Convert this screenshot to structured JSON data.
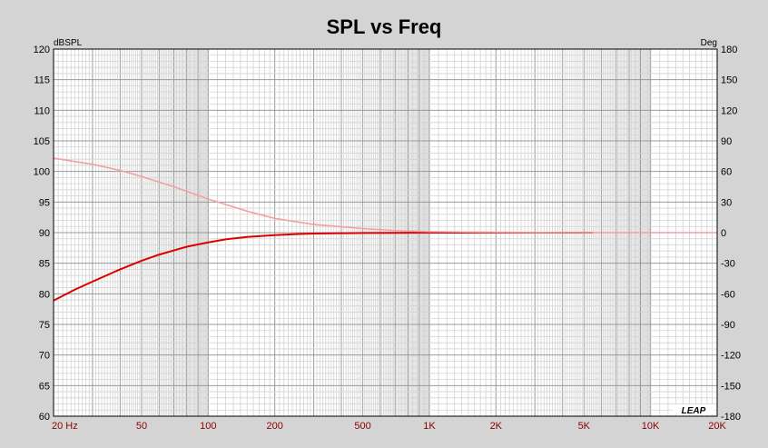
{
  "chart_data": {
    "type": "line",
    "title": "SPL vs Freq",
    "y_left_unit": "dBSPL",
    "y_right_unit": "Deg",
    "x_scale": "log",
    "xlim": [
      20,
      20000
    ],
    "ylim_left": [
      60,
      120
    ],
    "ylim_right": [
      -180,
      180
    ],
    "grid": true,
    "x_tick_values": [
      20,
      50,
      100,
      200,
      500,
      1000,
      2000,
      5000,
      10000,
      20000
    ],
    "x_tick_labels": [
      "20  Hz",
      "50",
      "100",
      "200",
      "500",
      "1K",
      "2K",
      "5K",
      "10K",
      "20K"
    ],
    "y_left_ticks": [
      120,
      115,
      110,
      105,
      100,
      95,
      90,
      85,
      80,
      75,
      70,
      65,
      60
    ],
    "y_right_ticks": [
      180,
      150,
      120,
      90,
      60,
      30,
      0,
      -30,
      -60,
      -90,
      -120,
      -150,
      -180
    ],
    "series": [
      {
        "axis": "left",
        "color": "#dd0000",
        "x": [
          20,
          25,
          30,
          40,
          50,
          60,
          70,
          80,
          100,
          120,
          150,
          200,
          250,
          300,
          400,
          500,
          700,
          1000,
          1500,
          2000,
          3000,
          5000,
          5500
        ],
        "y": [
          78.9,
          80.7,
          82.0,
          84.0,
          85.4,
          86.4,
          87.1,
          87.7,
          88.4,
          88.9,
          89.3,
          89.6,
          89.75,
          89.85,
          89.9,
          89.95,
          89.97,
          90.0,
          90.0,
          90.0,
          90.0,
          90.0,
          90.0
        ]
      },
      {
        "axis": "right",
        "color": "#f4a0a0",
        "x": [
          20,
          30,
          40,
          50,
          70,
          100,
          150,
          200,
          300,
          500,
          700,
          1000,
          1500,
          2000,
          3000,
          5000,
          10000,
          20000
        ],
        "y": [
          73,
          67,
          61,
          55,
          45,
          33,
          21,
          14,
          8,
          4,
          2,
          1,
          0.6,
          0.4,
          0.2,
          0.1,
          0,
          0
        ]
      }
    ]
  },
  "logo_text": "LEAP"
}
